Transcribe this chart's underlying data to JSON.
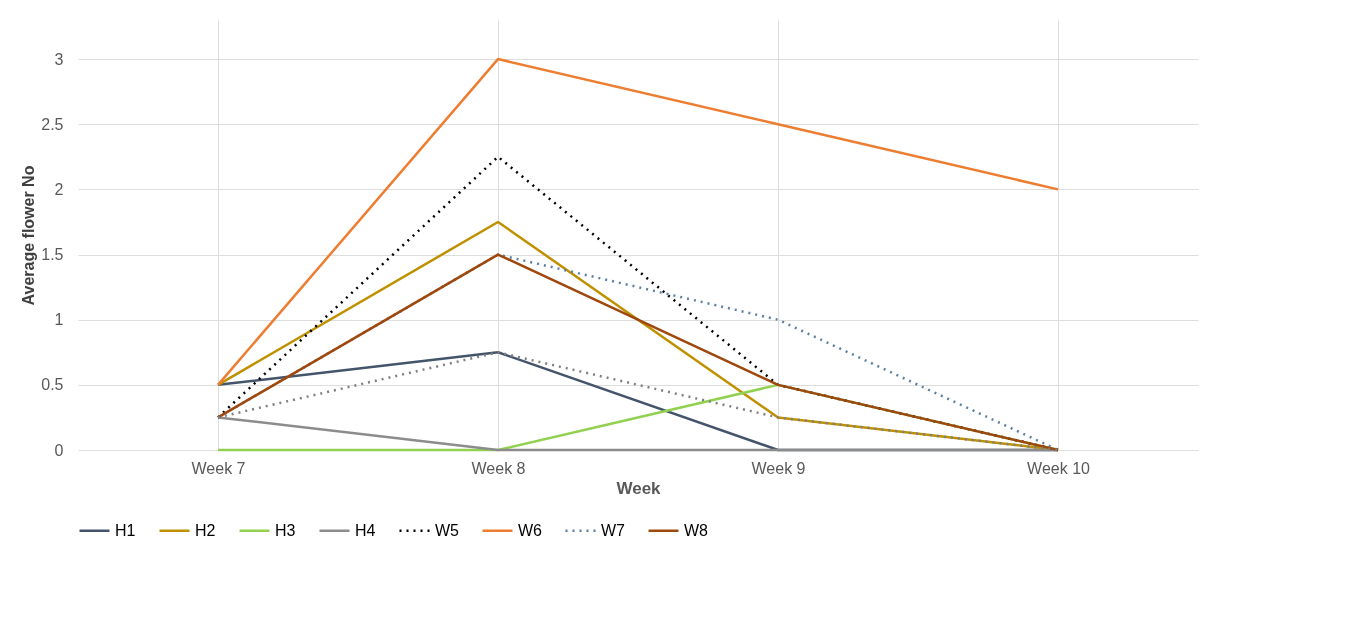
{
  "chart_data": {
    "type": "line",
    "xlabel": "Week",
    "ylabel": "Average flower No",
    "categories": [
      "Week 7",
      "Week 8",
      "Week 9",
      "Week 10"
    ],
    "ylim": [
      0,
      3.3
    ],
    "yticks": [
      0,
      0.5,
      1,
      1.5,
      2,
      2.5,
      3
    ],
    "grid": true,
    "legend": "bottom",
    "marker": "none",
    "series": [
      {
        "name": "H1",
        "color": "#44546a",
        "values": [
          0.5,
          0.75,
          0,
          0
        ]
      },
      {
        "name": "H2",
        "color": "#bf9000",
        "values": [
          0.5,
          1.75,
          0.25,
          0
        ]
      },
      {
        "name": "H3",
        "color": "#92d050",
        "values": [
          0,
          0,
          0.5,
          0
        ]
      },
      {
        "name": "H4",
        "color": "#8c8c8c",
        "values": [
          0.25,
          0,
          0,
          0
        ]
      },
      {
        "name": "W5",
        "color": "#000000",
        "values": [
          0.25,
          2.25,
          0.5,
          0
        ],
        "line_style": "dotted"
      },
      {
        "name": "W6",
        "color": "#ed7d31",
        "values": [
          0.5,
          3,
          2.5,
          2
        ]
      },
      {
        "name": "W7",
        "color": "#5b7fa6",
        "values": [
          0.25,
          1.5,
          1,
          0
        ],
        "line_style": "dotted"
      },
      {
        "name": "W8",
        "color": "#9e480e",
        "values": [
          0.25,
          1.5,
          0.5,
          0
        ]
      },
      {
        "color": "#7f7f7f",
        "values": [
          0.25,
          0.75,
          0.25,
          0
        ],
        "line_style": "dotted"
      }
    ]
  }
}
